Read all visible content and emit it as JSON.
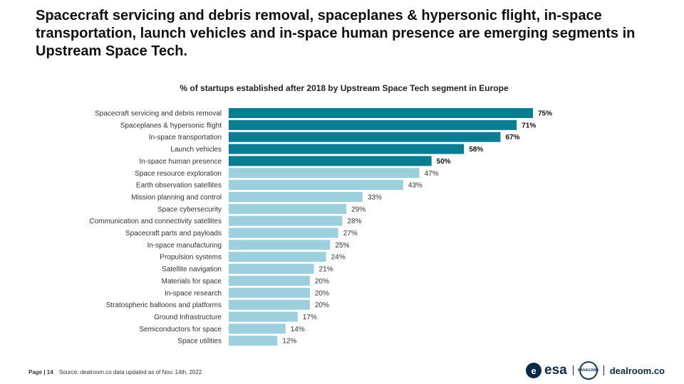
{
  "headline": "Spacecraft servicing and debris removal, spaceplanes & hypersonic flight, in-space transportation, launch vehicles and in-space human presence are emerging segments in Upstream Space Tech.",
  "colors": {
    "highlight": "#0B7D93",
    "regular": "#9ECFDC"
  },
  "chart_data": {
    "type": "bar",
    "orientation": "horizontal",
    "title": "% of startups established after 2018 by Upstream Space Tech segment in Europe",
    "xlabel": "",
    "ylabel": "",
    "xlim": [
      0,
      75
    ],
    "grid": false,
    "value_suffix": "%",
    "categories": [
      "Spacecraft servicing and debris removal",
      "Spaceplanes & hypersonic flight",
      "In-space transportation",
      "Launch vehicles",
      "In-space human presence",
      "Space resource exploration",
      "Earth observation satellites",
      "Mission planning and control",
      "Space cybersecurity",
      "Communication and connectivity satellites",
      "Spacecraft parts and payloads",
      "In-space manufacturing",
      "Propulsion systems",
      "Satellite navigation",
      "Materials for space",
      "In-space research",
      "Stratospheric balloons and platforms",
      "Ground Infrastructure",
      "Semiconductors for space",
      "Space utilities"
    ],
    "values": [
      75,
      71,
      67,
      58,
      50,
      47,
      43,
      33,
      29,
      28,
      27,
      25,
      24,
      21,
      20,
      20,
      20,
      17,
      14,
      12
    ],
    "highlighted": [
      true,
      true,
      true,
      true,
      true,
      false,
      false,
      false,
      false,
      false,
      false,
      false,
      false,
      false,
      false,
      false,
      false,
      false,
      false,
      false
    ]
  },
  "footer": {
    "page": "Page | 14",
    "source": "Source: dealroom.co   data updated as of Nov. 14th, 2022"
  },
  "logos": {
    "esa": "esa",
    "esa_mark": "e",
    "emblem": "KANAGAWA",
    "dealroom": "dealroom.co",
    "separator": "|"
  }
}
